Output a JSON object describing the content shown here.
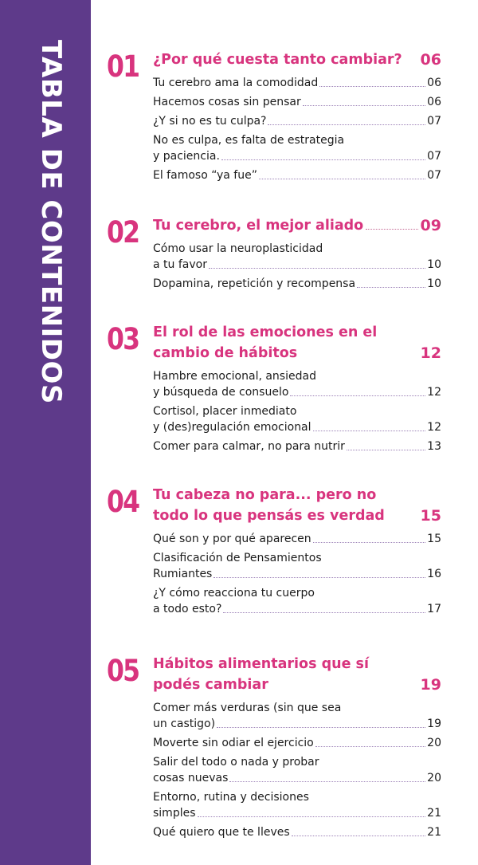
{
  "sidebar": {
    "title": "TABLA DE CONTENIDOS"
  },
  "sections": [
    {
      "number": "01",
      "title_lines": [
        "¿Por qué cuesta tanto cambiar?"
      ],
      "page": "06",
      "items": [
        {
          "lines": [
            "Tu cerebro ama la comodidad"
          ],
          "page": "06"
        },
        {
          "lines": [
            "Hacemos cosas sin pensar"
          ],
          "page": "06"
        },
        {
          "lines": [
            "¿Y si no es tu culpa?"
          ],
          "page": "07"
        },
        {
          "lines": [
            "No es culpa, es falta de estrategia",
            "y paciencia."
          ],
          "page": "07"
        },
        {
          "lines": [
            "El famoso “ya fue”"
          ],
          "page": "07"
        }
      ]
    },
    {
      "number": "02",
      "title_lines": [
        "Tu cerebro, el mejor aliado"
      ],
      "page": "09",
      "items": [
        {
          "lines": [
            "Cómo usar la neuroplasticidad",
            "a tu favor"
          ],
          "page": "10"
        },
        {
          "lines": [
            "Dopamina, repetición y recompensa"
          ],
          "page": "10"
        }
      ]
    },
    {
      "number": "03",
      "title_lines": [
        "El rol de las emociones en el",
        "cambio de hábitos"
      ],
      "page": "12",
      "items": [
        {
          "lines": [
            "Hambre emocional, ansiedad",
            "y búsqueda de consuelo"
          ],
          "page": "12"
        },
        {
          "lines": [
            "Cortisol, placer inmediato",
            "y (des)regulación emocional"
          ],
          "page": "12"
        },
        {
          "lines": [
            "Comer para calmar, no para nutrir"
          ],
          "page": "13"
        }
      ]
    },
    {
      "number": "04",
      "title_lines": [
        "Tu cabeza no para... pero no",
        "todo lo que pensás es verdad"
      ],
      "page": "15",
      "items": [
        {
          "lines": [
            "Qué son y por qué aparecen"
          ],
          "page": "15"
        },
        {
          "lines": [
            "Clasificación de Pensamientos",
            "Rumiantes"
          ],
          "page": "16"
        },
        {
          "lines": [
            "¿Y cómo reacciona tu cuerpo",
            "a todo esto?"
          ],
          "page": "17"
        }
      ]
    },
    {
      "number": "05",
      "title_lines": [
        "Hábitos alimentarios que sí",
        "podés cambiar"
      ],
      "page": "19",
      "items": [
        {
          "lines": [
            "Comer más verduras (sin que sea",
            "un castigo)"
          ],
          "page": "19"
        },
        {
          "lines": [
            "Moverte sin odiar el ejercicio"
          ],
          "page": "20"
        },
        {
          "lines": [
            "Salir del todo o nada y probar",
            "cosas nuevas"
          ],
          "page": "20"
        },
        {
          "lines": [
            "Entorno, rutina y decisiones",
            "simples"
          ],
          "page": "21"
        },
        {
          "lines": [
            "Qué quiero que te lleves"
          ],
          "page": "21"
        }
      ]
    }
  ]
}
